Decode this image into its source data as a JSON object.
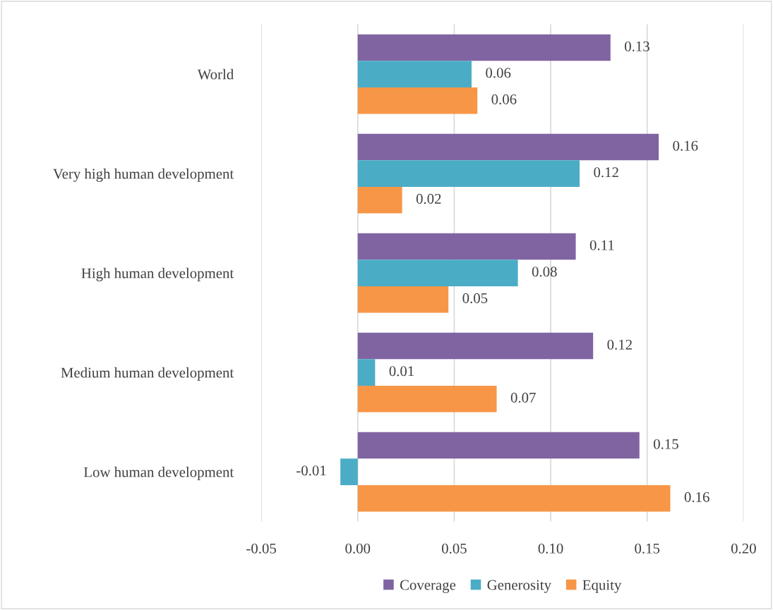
{
  "chart_data": {
    "type": "bar",
    "orientation": "horizontal",
    "categories": [
      "World",
      "Very high human development",
      "High human development",
      "Medium human development",
      "Low human development"
    ],
    "series": [
      {
        "name": "Coverage",
        "color": "#8064a2",
        "values": [
          0.131,
          0.156,
          0.113,
          0.122,
          0.146
        ],
        "value_labels": [
          "0.13",
          "0.16",
          "0.11",
          "0.12",
          "0.15"
        ]
      },
      {
        "name": "Generosity",
        "color": "#4bacc6",
        "values": [
          0.059,
          0.115,
          0.083,
          0.009,
          -0.009
        ],
        "value_labels": [
          "0.06",
          "0.12",
          "0.08",
          "0.01",
          "-0.01"
        ]
      },
      {
        "name": "Equity",
        "color": "#f79646",
        "values": [
          0.062,
          0.023,
          0.047,
          0.072,
          0.162
        ],
        "value_labels": [
          "0.06",
          "0.02",
          "0.05",
          "0.07",
          "0.16"
        ]
      }
    ],
    "xlim": [
      -0.05,
      0.2
    ],
    "xticks": [
      {
        "value": -0.05,
        "label": "-0.05"
      },
      {
        "value": 0,
        "label": "0.00"
      },
      {
        "value": 0.05,
        "label": "0.05"
      },
      {
        "value": 0.1,
        "label": "0.10"
      },
      {
        "value": 0.15,
        "label": "0.15"
      },
      {
        "value": 0.2,
        "label": "0.20"
      }
    ],
    "grid": "x",
    "legend": "bottom"
  }
}
